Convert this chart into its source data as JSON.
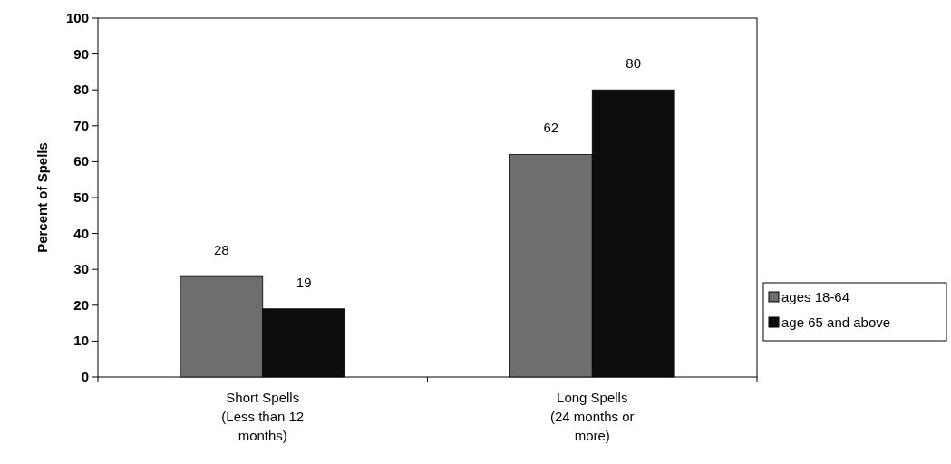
{
  "chart_data": {
    "type": "bar",
    "ylabel": "Percent of Spells",
    "categories": [
      "Short Spells (Less than 12 months)",
      "Long Spells (24 months or more)"
    ],
    "series": [
      {
        "name": "ages 18-64",
        "color": "#6e6e6e",
        "values": [
          28,
          62
        ]
      },
      {
        "name": "age 65 and above",
        "color": "#0d0d0d",
        "values": [
          19,
          80
        ]
      }
    ],
    "ylim": [
      0,
      100
    ],
    "yticks": [
      0,
      10,
      20,
      30,
      40,
      50,
      60,
      70,
      80,
      90,
      100
    ],
    "data_labels": true,
    "legend": "right",
    "grid": false
  }
}
